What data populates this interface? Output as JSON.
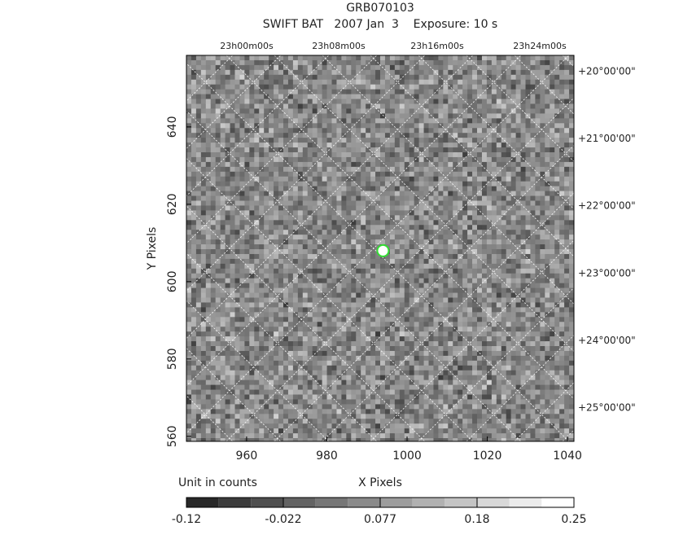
{
  "chart_data": {
    "type": "image",
    "title": "GRB070103",
    "subtitle": "SWIFT BAT   2007 Jan  3    Exposure: 10 s",
    "xlabel": "X Pixels",
    "ylabel": "Y Pixels",
    "xlim": [
      945,
      1041.6
    ],
    "xticks": [
      960,
      980,
      1000,
      1020,
      1040
    ],
    "ylim": [
      558.7,
      658.5
    ],
    "yticks": [
      560,
      580,
      600,
      620,
      640
    ],
    "ra_labels": [
      "23h00m00s",
      "23h08m00s",
      "23h16m00s",
      "23h24m00s"
    ],
    "dec_labels": [
      "+20°00'00\"",
      "+21°00'00\"",
      "+22°00'00\"",
      "+23°00'00\"",
      "+24°00'00\"",
      "+25°00'00\""
    ],
    "source_position": {
      "x": 994,
      "y": 608,
      "color": "#33dd33"
    },
    "colorbar_label": "Unit in counts",
    "colorbar_ticks": [
      -0.12,
      -0.022,
      0.077,
      0.18,
      0.25
    ]
  }
}
